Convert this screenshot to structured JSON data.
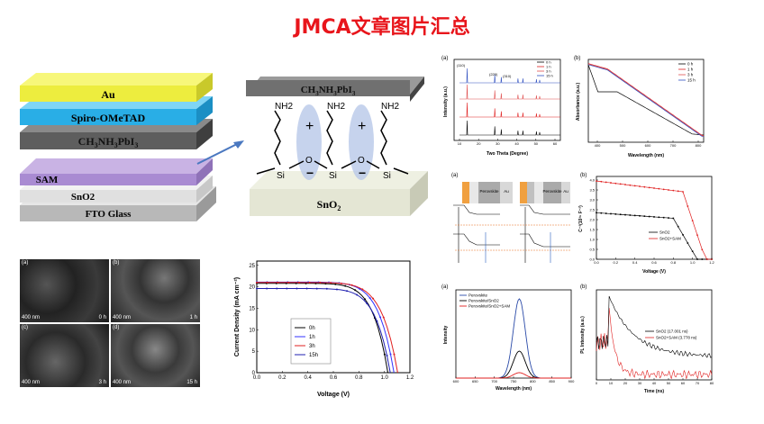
{
  "page_title": "JMCA文章图片汇总",
  "stack": {
    "layers": [
      "Au",
      "Spiro-OMeTAD",
      "CH3NH3PbI3",
      "SAM",
      "SnO2",
      "FTO Glass"
    ]
  },
  "molecule": {
    "top_label": "CH3NH3PbI3",
    "bottom_label": "SnO2",
    "nh2": "NH2",
    "o": "O",
    "si": "Si",
    "plus": "+",
    "minus": "−"
  },
  "sem": {
    "scale": "400 nm",
    "panels": [
      {
        "tag": "(a)",
        "time": "0 h"
      },
      {
        "tag": "(b)",
        "time": "1 h"
      },
      {
        "tag": "(c)",
        "time": "3 h"
      },
      {
        "tag": "(d)",
        "time": "15 h"
      }
    ]
  },
  "jv": {
    "xlabel": "Voltage (V)",
    "ylabel": "Current Density (mA cm⁻²)",
    "xticks": [
      "0.0",
      "0.2",
      "0.4",
      "0.6",
      "0.8",
      "1.0",
      "1.2"
    ],
    "yticks": [
      "0",
      "5",
      "10",
      "15",
      "20",
      "25"
    ],
    "legend": [
      "0h",
      "1h",
      "3h",
      "15h"
    ],
    "colors": [
      "#000000",
      "#3333ff",
      "#e02020",
      "#2020b0"
    ]
  },
  "xrd": {
    "tag": "(a)",
    "xlabel": "Two Theta (Degree)",
    "ylabel": "Intensity (a.u.)",
    "xticks": [
      "10",
      "20",
      "30",
      "40",
      "50",
      "60"
    ],
    "legend": [
      "0 h",
      "1 h",
      "3 h",
      "15 h"
    ],
    "peaks": [
      "(110)",
      "(220)",
      "(310)"
    ]
  },
  "abs": {
    "tag": "(b)",
    "xlabel": "Wavelength (nm)",
    "ylabel": "Absorbance (a.u.)",
    "xticks": [
      "400",
      "500",
      "600",
      "700",
      "800"
    ],
    "legend": [
      "0 h",
      "1 h",
      "3 h",
      "15 h"
    ]
  },
  "band": {
    "tag": "(a)",
    "labels": [
      "ITO",
      "SnO2",
      "Perovskite",
      "Au",
      "SAM"
    ]
  },
  "ms": {
    "tag": "(b)",
    "xlabel": "Voltage (V)",
    "ylabel": "C⁻²(10¹⁶ F⁻²)",
    "xticks": [
      "0.0",
      "0.2",
      "0.4",
      "0.6",
      "0.8",
      "1.0",
      "1.2"
    ],
    "yticks": [
      "0.0",
      "0.5",
      "1.0",
      "1.5",
      "2.0",
      "2.5",
      "3.0",
      "3.5",
      "4.0"
    ],
    "legend": [
      "SnO2",
      "SnO2+SAM"
    ]
  },
  "pl": {
    "tag": "(a)",
    "xlabel": "Wavelength (nm)",
    "ylabel": "Intensity",
    "xticks": [
      "600",
      "650",
      "700",
      "750",
      "800",
      "850",
      "900"
    ],
    "legend": [
      "Perovskite",
      "Perovskite/SnO2",
      "Perovskite/SnO2+SAM"
    ]
  },
  "trpl": {
    "tag": "(b)",
    "xlabel": "Time (ns)",
    "ylabel": "PL Intensity (a.u.)",
    "xticks": [
      "0",
      "10",
      "20",
      "30",
      "40",
      "50",
      "60",
      "70",
      "80"
    ],
    "legend": [
      "SnO2 (17.001 ns)",
      "SnO2+SAM (3.778 ns)"
    ]
  }
}
